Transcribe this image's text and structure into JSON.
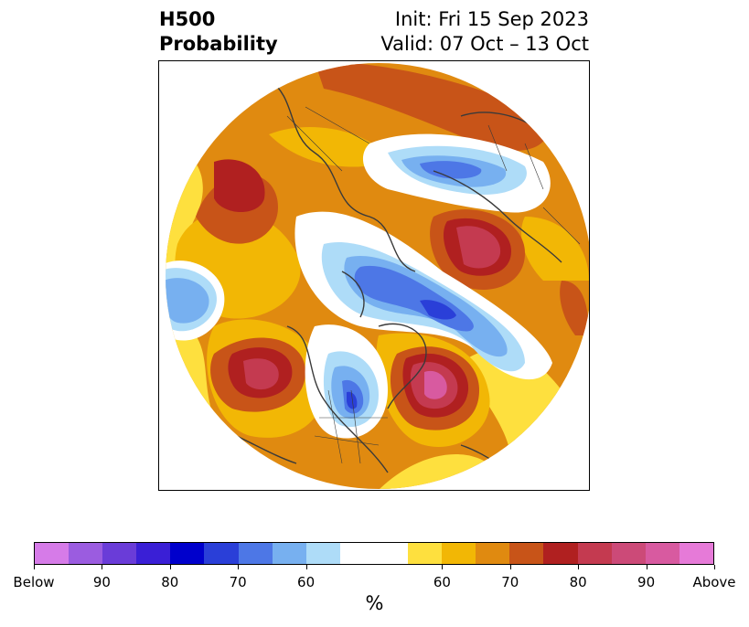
{
  "title": {
    "variable": "H500",
    "product": "Probability",
    "init": "Init: Fri 15 Sep 2023",
    "valid": "Valid: 07 Oct – 13 Oct"
  },
  "colorbar": {
    "unit": "%",
    "colors": [
      "#d67be8",
      "#9b5ce0",
      "#6a3cd8",
      "#3a1fd6",
      "#0000cc",
      "#2a3fd8",
      "#4d77e6",
      "#77b0f0",
      "#aedcf8",
      "#ffffff",
      "#fee03e",
      "#f2b705",
      "#e08a10",
      "#c85418",
      "#b02020",
      "#c43a50",
      "#cc4a78",
      "#d85aa0",
      "#e67ad8"
    ],
    "ticks": [
      "Below",
      "90",
      "80",
      "70",
      "60",
      "60",
      "70",
      "80",
      "90",
      "Above"
    ]
  },
  "map": {
    "projection": "polar-stereographic",
    "palette": {
      "outer_orange": "#e08a10",
      "yellow": "#fee03e",
      "gold": "#f2b705",
      "rust": "#c85418",
      "red": "#b02020",
      "rose": "#c43a50",
      "pink": "#d85aa0",
      "lightblue": "#aedcf8",
      "blue": "#77b0f0",
      "midblue": "#4d77e6",
      "deepblue": "#2a3fd8"
    }
  }
}
